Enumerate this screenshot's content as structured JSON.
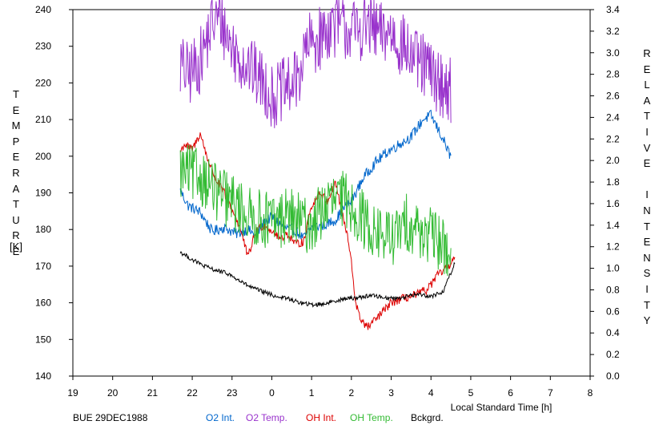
{
  "chart_data": {
    "type": "line",
    "xlabel": "Local Standard Time [h]",
    "ylabel_left": "TEMPERATURE [K]",
    "ylabel_left_letters": [
      "T",
      "E",
      "M",
      "P",
      "E",
      "R",
      "A",
      "T",
      "U",
      "R",
      "E"
    ],
    "ylabel_left_unit": "[K]",
    "ylabel_right": "RELATIVE INTENSITY",
    "ylabel_right_word1": [
      "R",
      "E",
      "L",
      "A",
      "T",
      "I",
      "V",
      "E"
    ],
    "ylabel_right_word2": [
      "I",
      "N",
      "T",
      "E",
      "N",
      "S",
      "I",
      "T",
      "Y"
    ],
    "x_ticks": [
      "19",
      "20",
      "21",
      "22",
      "23",
      "0",
      "1",
      "2",
      "3",
      "4",
      "5",
      "6",
      "7",
      "8"
    ],
    "xlim": [
      19,
      32
    ],
    "ylim_left": [
      140,
      240
    ],
    "ylim_right": [
      0,
      3.4
    ],
    "y_ticks_left": [
      "140",
      "150",
      "160",
      "170",
      "180",
      "190",
      "200",
      "210",
      "220",
      "230",
      "240"
    ],
    "y_ticks_right": [
      "0.0",
      "0.2",
      "0.4",
      "0.6",
      "0.8",
      "1.0",
      "1.2",
      "1.4",
      "1.6",
      "1.8",
      "2.0",
      "2.2",
      "2.4",
      "2.6",
      "2.8",
      "3.0",
      "3.2",
      "3.4"
    ],
    "grid": false,
    "station_label": "BUE 29DEC1988",
    "series": [
      {
        "name": "O2 Int.",
        "axis": "right",
        "color": "#0066cc",
        "jitter": 0.05,
        "knots_x": [
          21.7,
          21.9,
          22.2,
          22.5,
          22.8,
          23.1,
          23.4,
          23.6,
          23.8,
          24.0,
          24.3,
          24.6,
          24.8,
          25.0,
          25.3,
          25.6,
          25.8,
          26.0,
          26.3,
          26.6,
          26.9,
          27.2,
          27.5,
          27.8,
          28.0,
          28.3,
          28.5
        ],
        "knots_y": [
          1.72,
          1.58,
          1.52,
          1.34,
          1.38,
          1.32,
          1.36,
          1.3,
          1.42,
          1.48,
          1.38,
          1.35,
          1.28,
          1.38,
          1.4,
          1.45,
          1.55,
          1.62,
          1.84,
          1.98,
          2.08,
          2.15,
          2.22,
          2.38,
          2.42,
          2.2,
          2.03
        ]
      },
      {
        "name": "O2 Temp.",
        "axis": "left",
        "color": "#9933cc",
        "jitter": 9,
        "knots_x": [
          21.7,
          21.9,
          22.2,
          22.5,
          22.7,
          22.9,
          23.1,
          23.3,
          23.6,
          23.8,
          24.0,
          24.3,
          24.6,
          24.9,
          25.2,
          25.5,
          25.8,
          26.1,
          26.4,
          26.7,
          27.0,
          27.3,
          27.6,
          27.9,
          28.2,
          28.5
        ],
        "knots_y": [
          225,
          222,
          226,
          236,
          238,
          232,
          228,
          226,
          222,
          220,
          216,
          218,
          220,
          230,
          232,
          236,
          235,
          234,
          236,
          233,
          234,
          230,
          226,
          224,
          220,
          218
        ]
      },
      {
        "name": "OH Int.",
        "axis": "right",
        "color": "#dd0000",
        "jitter": 0.04,
        "knots_x": [
          21.7,
          21.8,
          22.0,
          22.2,
          22.4,
          22.6,
          22.8,
          23.0,
          23.2,
          23.4,
          23.6,
          23.8,
          24.0,
          24.2,
          24.4,
          24.6,
          24.8,
          25.0,
          25.2,
          25.4,
          25.6,
          25.8,
          25.9,
          26.0,
          26.1,
          26.2,
          26.4,
          26.6,
          26.8,
          27.0,
          27.3,
          27.6,
          27.9,
          28.2,
          28.4,
          28.6
        ],
        "knots_y": [
          2.08,
          2.15,
          2.1,
          2.25,
          2.0,
          1.82,
          1.7,
          1.55,
          1.38,
          1.1,
          1.35,
          1.4,
          1.35,
          1.28,
          1.32,
          1.22,
          1.25,
          1.58,
          1.7,
          1.62,
          1.8,
          1.45,
          1.3,
          1.05,
          0.7,
          0.55,
          0.45,
          0.52,
          0.6,
          0.68,
          0.72,
          0.75,
          0.8,
          0.95,
          1.0,
          1.1
        ]
      },
      {
        "name": "OH Temp.",
        "axis": "left",
        "color": "#33bb33",
        "jitter": 8,
        "knots_x": [
          21.7,
          22.0,
          22.3,
          22.6,
          22.9,
          23.2,
          23.5,
          23.8,
          24.1,
          24.4,
          24.7,
          25.0,
          25.3,
          25.6,
          25.9,
          26.2,
          26.5,
          26.8,
          27.1,
          27.4,
          27.7,
          28.0,
          28.3,
          28.5
        ],
        "knots_y": [
          196,
          195,
          194,
          190,
          188,
          186,
          183,
          183,
          182,
          184,
          182,
          181,
          186,
          188,
          188,
          184,
          180,
          178,
          178,
          182,
          180,
          178,
          176,
          172
        ]
      },
      {
        "name": "Bckgrd.",
        "axis": "right",
        "color": "#000000",
        "jitter": 0.02,
        "knots_x": [
          21.7,
          22.0,
          22.3,
          22.6,
          22.9,
          23.2,
          23.5,
          23.8,
          24.1,
          24.4,
          24.7,
          25.0,
          25.3,
          25.6,
          25.9,
          26.2,
          26.5,
          26.8,
          27.1,
          27.4,
          27.7,
          28.0,
          28.3,
          28.6
        ],
        "knots_y": [
          1.15,
          1.08,
          1.02,
          0.98,
          0.95,
          0.88,
          0.82,
          0.78,
          0.74,
          0.72,
          0.68,
          0.66,
          0.67,
          0.7,
          0.72,
          0.73,
          0.75,
          0.73,
          0.72,
          0.74,
          0.76,
          0.74,
          0.78,
          1.05
        ]
      }
    ]
  }
}
